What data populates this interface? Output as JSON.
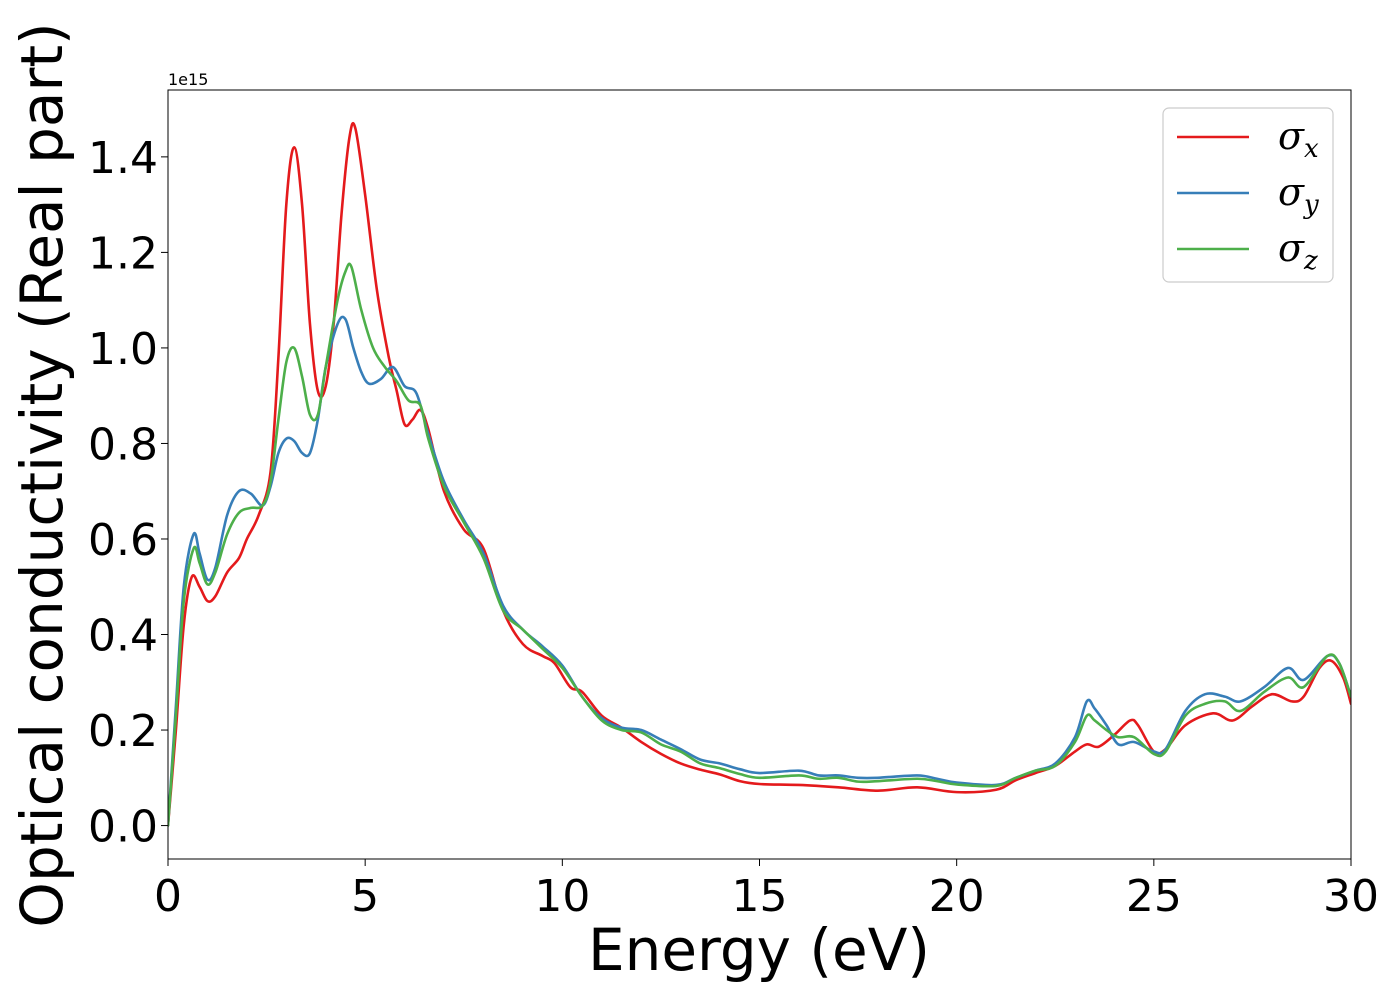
{
  "chart_data": {
    "type": "line",
    "title": "",
    "xlabel": "Energy (eV)",
    "ylabel": "Optical conductivity (Real part)",
    "y_offset_label": "1e15",
    "y_scale_factor": 1000000000000000.0,
    "xlim": [
      0,
      30
    ],
    "ylim": [
      -0.07,
      1.54
    ],
    "xticks": [
      0,
      5,
      10,
      15,
      20,
      25,
      30
    ],
    "xtick_labels": [
      "0",
      "5",
      "10",
      "15",
      "20",
      "25",
      "30"
    ],
    "yticks": [
      0.0,
      0.2,
      0.4,
      0.6,
      0.8,
      1.0,
      1.2,
      1.4
    ],
    "ytick_labels": [
      "0.0",
      "0.2",
      "0.4",
      "0.6",
      "0.8",
      "1.0",
      "1.2",
      "1.4"
    ],
    "grid": false,
    "legend_position": "top-right",
    "series": [
      {
        "name": "σ",
        "subscript": "x",
        "color": "#e41a1c",
        "points": [
          [
            0,
            0
          ],
          [
            0.2,
            0.2
          ],
          [
            0.4,
            0.42
          ],
          [
            0.6,
            0.52
          ],
          [
            0.8,
            0.5
          ],
          [
            1.0,
            0.47
          ],
          [
            1.2,
            0.48
          ],
          [
            1.5,
            0.53
          ],
          [
            1.8,
            0.56
          ],
          [
            2.0,
            0.6
          ],
          [
            2.3,
            0.65
          ],
          [
            2.6,
            0.74
          ],
          [
            2.8,
            0.98
          ],
          [
            3.0,
            1.3
          ],
          [
            3.2,
            1.42
          ],
          [
            3.4,
            1.3
          ],
          [
            3.6,
            1.05
          ],
          [
            3.8,
            0.91
          ],
          [
            4.0,
            0.92
          ],
          [
            4.2,
            1.05
          ],
          [
            4.4,
            1.28
          ],
          [
            4.6,
            1.44
          ],
          [
            4.75,
            1.46
          ],
          [
            5.0,
            1.32
          ],
          [
            5.3,
            1.12
          ],
          [
            5.6,
            0.98
          ],
          [
            5.8,
            0.91
          ],
          [
            6.0,
            0.84
          ],
          [
            6.2,
            0.85
          ],
          [
            6.4,
            0.87
          ],
          [
            6.6,
            0.83
          ],
          [
            7.0,
            0.7
          ],
          [
            7.5,
            0.62
          ],
          [
            8.0,
            0.58
          ],
          [
            8.5,
            0.45
          ],
          [
            9.0,
            0.38
          ],
          [
            9.5,
            0.355
          ],
          [
            9.8,
            0.34
          ],
          [
            10.2,
            0.29
          ],
          [
            10.5,
            0.28
          ],
          [
            11.0,
            0.23
          ],
          [
            11.5,
            0.205
          ],
          [
            12.0,
            0.175
          ],
          [
            12.5,
            0.15
          ],
          [
            13.0,
            0.13
          ],
          [
            13.5,
            0.117
          ],
          [
            14.0,
            0.107
          ],
          [
            14.5,
            0.093
          ],
          [
            15.0,
            0.087
          ],
          [
            16.0,
            0.085
          ],
          [
            17.0,
            0.08
          ],
          [
            18.0,
            0.073
          ],
          [
            19.0,
            0.08
          ],
          [
            20.0,
            0.07
          ],
          [
            21.0,
            0.075
          ],
          [
            21.5,
            0.095
          ],
          [
            22.0,
            0.11
          ],
          [
            22.5,
            0.125
          ],
          [
            23.0,
            0.155
          ],
          [
            23.3,
            0.17
          ],
          [
            23.6,
            0.165
          ],
          [
            24.0,
            0.19
          ],
          [
            24.4,
            0.22
          ],
          [
            24.6,
            0.21
          ],
          [
            25.0,
            0.155
          ],
          [
            25.3,
            0.16
          ],
          [
            25.8,
            0.21
          ],
          [
            26.5,
            0.235
          ],
          [
            27.0,
            0.22
          ],
          [
            27.5,
            0.25
          ],
          [
            28.0,
            0.275
          ],
          [
            28.5,
            0.26
          ],
          [
            28.8,
            0.27
          ],
          [
            29.2,
            0.33
          ],
          [
            29.5,
            0.345
          ],
          [
            29.8,
            0.31
          ],
          [
            30.0,
            0.255
          ]
        ]
      },
      {
        "name": "σ",
        "subscript": "y",
        "color": "#377eb8",
        "points": [
          [
            0,
            0
          ],
          [
            0.2,
            0.25
          ],
          [
            0.4,
            0.5
          ],
          [
            0.65,
            0.61
          ],
          [
            0.8,
            0.57
          ],
          [
            1.0,
            0.515
          ],
          [
            1.2,
            0.54
          ],
          [
            1.5,
            0.65
          ],
          [
            1.8,
            0.7
          ],
          [
            2.1,
            0.695
          ],
          [
            2.4,
            0.67
          ],
          [
            2.6,
            0.71
          ],
          [
            2.8,
            0.78
          ],
          [
            3.0,
            0.81
          ],
          [
            3.2,
            0.805
          ],
          [
            3.4,
            0.78
          ],
          [
            3.6,
            0.78
          ],
          [
            3.8,
            0.85
          ],
          [
            4.0,
            0.96
          ],
          [
            4.3,
            1.05
          ],
          [
            4.5,
            1.06
          ],
          [
            4.7,
            1.0
          ],
          [
            4.9,
            0.95
          ],
          [
            5.1,
            0.925
          ],
          [
            5.4,
            0.935
          ],
          [
            5.7,
            0.96
          ],
          [
            6.0,
            0.92
          ],
          [
            6.3,
            0.905
          ],
          [
            6.6,
            0.82
          ],
          [
            7.0,
            0.72
          ],
          [
            7.5,
            0.64
          ],
          [
            8.0,
            0.57
          ],
          [
            8.5,
            0.46
          ],
          [
            9.0,
            0.41
          ],
          [
            9.5,
            0.375
          ],
          [
            10.0,
            0.335
          ],
          [
            10.5,
            0.27
          ],
          [
            11.0,
            0.225
          ],
          [
            11.5,
            0.205
          ],
          [
            12.0,
            0.2
          ],
          [
            12.5,
            0.18
          ],
          [
            13.0,
            0.16
          ],
          [
            13.5,
            0.138
          ],
          [
            14.0,
            0.13
          ],
          [
            14.5,
            0.118
          ],
          [
            15.0,
            0.11
          ],
          [
            16.0,
            0.115
          ],
          [
            16.5,
            0.105
          ],
          [
            17.0,
            0.105
          ],
          [
            17.5,
            0.1
          ],
          [
            18.0,
            0.1
          ],
          [
            19.0,
            0.105
          ],
          [
            19.5,
            0.098
          ],
          [
            20.0,
            0.09
          ],
          [
            21.0,
            0.085
          ],
          [
            21.5,
            0.1
          ],
          [
            22.0,
            0.115
          ],
          [
            22.5,
            0.13
          ],
          [
            23.0,
            0.185
          ],
          [
            23.3,
            0.26
          ],
          [
            23.5,
            0.245
          ],
          [
            23.8,
            0.21
          ],
          [
            24.1,
            0.17
          ],
          [
            24.5,
            0.175
          ],
          [
            25.0,
            0.155
          ],
          [
            25.3,
            0.16
          ],
          [
            25.8,
            0.24
          ],
          [
            26.3,
            0.275
          ],
          [
            26.8,
            0.27
          ],
          [
            27.2,
            0.26
          ],
          [
            27.8,
            0.29
          ],
          [
            28.4,
            0.33
          ],
          [
            28.8,
            0.305
          ],
          [
            29.4,
            0.355
          ],
          [
            29.7,
            0.34
          ],
          [
            30.0,
            0.27
          ]
        ]
      },
      {
        "name": "σ",
        "subscript": "z",
        "color": "#4daf4a",
        "points": [
          [
            0,
            0
          ],
          [
            0.2,
            0.23
          ],
          [
            0.4,
            0.47
          ],
          [
            0.65,
            0.58
          ],
          [
            0.8,
            0.55
          ],
          [
            1.0,
            0.505
          ],
          [
            1.2,
            0.53
          ],
          [
            1.5,
            0.61
          ],
          [
            1.8,
            0.655
          ],
          [
            2.1,
            0.665
          ],
          [
            2.4,
            0.67
          ],
          [
            2.6,
            0.72
          ],
          [
            2.8,
            0.85
          ],
          [
            3.0,
            0.97
          ],
          [
            3.2,
            1.0
          ],
          [
            3.4,
            0.94
          ],
          [
            3.6,
            0.86
          ],
          [
            3.8,
            0.86
          ],
          [
            4.0,
            0.96
          ],
          [
            4.3,
            1.1
          ],
          [
            4.5,
            1.16
          ],
          [
            4.65,
            1.17
          ],
          [
            4.9,
            1.08
          ],
          [
            5.2,
            1.0
          ],
          [
            5.5,
            0.96
          ],
          [
            5.8,
            0.93
          ],
          [
            6.1,
            0.89
          ],
          [
            6.4,
            0.88
          ],
          [
            6.6,
            0.81
          ],
          [
            7.0,
            0.71
          ],
          [
            7.5,
            0.635
          ],
          [
            8.0,
            0.56
          ],
          [
            8.5,
            0.45
          ],
          [
            9.0,
            0.41
          ],
          [
            9.5,
            0.37
          ],
          [
            10.0,
            0.33
          ],
          [
            10.5,
            0.27
          ],
          [
            11.0,
            0.22
          ],
          [
            11.5,
            0.2
          ],
          [
            12.0,
            0.195
          ],
          [
            12.5,
            0.17
          ],
          [
            13.0,
            0.155
          ],
          [
            13.5,
            0.13
          ],
          [
            14.0,
            0.12
          ],
          [
            14.5,
            0.108
          ],
          [
            15.0,
            0.1
          ],
          [
            16.0,
            0.105
          ],
          [
            16.5,
            0.098
          ],
          [
            17.0,
            0.1
          ],
          [
            17.5,
            0.092
          ],
          [
            18.0,
            0.093
          ],
          [
            19.0,
            0.098
          ],
          [
            19.5,
            0.093
          ],
          [
            20.0,
            0.086
          ],
          [
            21.0,
            0.083
          ],
          [
            21.5,
            0.1
          ],
          [
            22.0,
            0.115
          ],
          [
            22.5,
            0.125
          ],
          [
            23.0,
            0.175
          ],
          [
            23.3,
            0.23
          ],
          [
            23.5,
            0.22
          ],
          [
            23.8,
            0.2
          ],
          [
            24.1,
            0.185
          ],
          [
            24.5,
            0.185
          ],
          [
            25.0,
            0.15
          ],
          [
            25.3,
            0.155
          ],
          [
            25.8,
            0.23
          ],
          [
            26.3,
            0.255
          ],
          [
            26.8,
            0.26
          ],
          [
            27.2,
            0.24
          ],
          [
            27.8,
            0.28
          ],
          [
            28.4,
            0.31
          ],
          [
            28.8,
            0.29
          ],
          [
            29.4,
            0.355
          ],
          [
            29.7,
            0.34
          ],
          [
            30.0,
            0.27
          ]
        ]
      }
    ]
  }
}
